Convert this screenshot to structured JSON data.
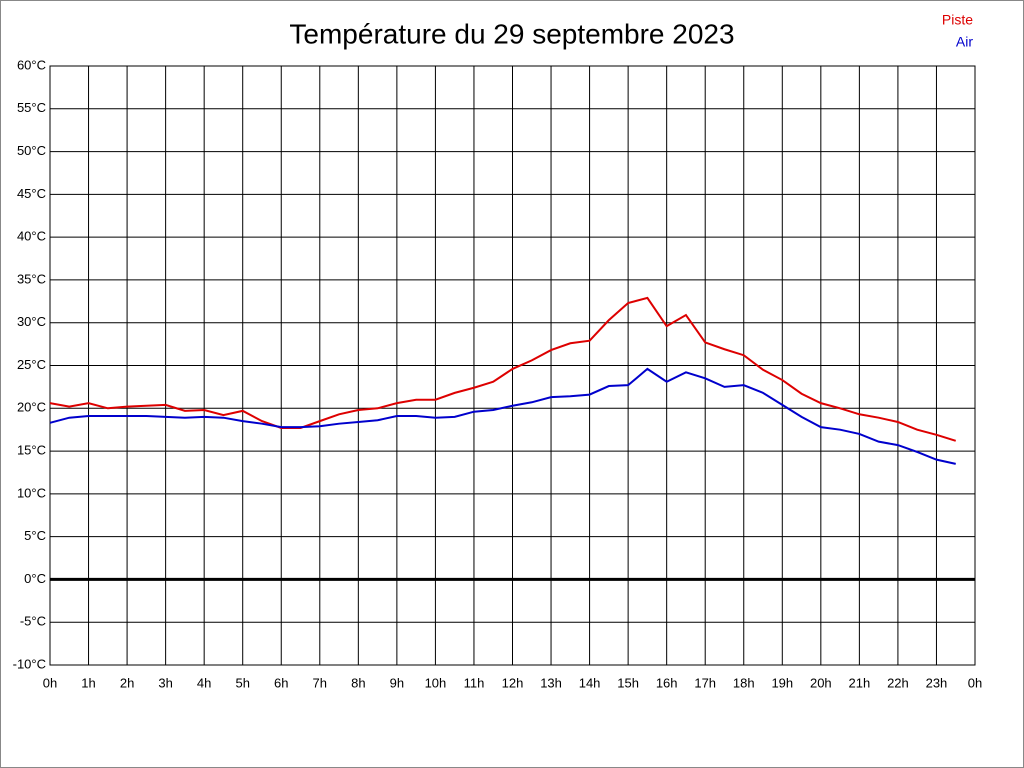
{
  "chart_data": {
    "type": "line",
    "title": "Température du 29 septembre 2023",
    "x": [
      0,
      0.5,
      1,
      1.5,
      2,
      2.5,
      3,
      3.5,
      4,
      4.5,
      5,
      5.5,
      6,
      6.5,
      7,
      7.5,
      8,
      8.5,
      9,
      9.5,
      10,
      10.5,
      11,
      11.5,
      12,
      12.5,
      13,
      13.5,
      14,
      14.5,
      15,
      15.5,
      16,
      16.5,
      17,
      17.5,
      18,
      18.5,
      19,
      19.5,
      20,
      20.5,
      21,
      21.5,
      22,
      22.5,
      23,
      23.5
    ],
    "series": [
      {
        "name": "Piste",
        "color": "#dd0000",
        "values": [
          20.6,
          20.2,
          20.6,
          20.0,
          20.2,
          20.3,
          20.4,
          19.7,
          19.8,
          19.2,
          19.7,
          18.5,
          17.7,
          17.7,
          18.5,
          19.3,
          19.8,
          20.0,
          20.6,
          21.0,
          21.0,
          21.8,
          22.4,
          23.1,
          24.6,
          25.6,
          26.8,
          27.6,
          27.9,
          30.3,
          32.3,
          32.9,
          29.6,
          30.9,
          27.7,
          26.9,
          26.2,
          24.5,
          23.3,
          21.7,
          20.6,
          20.0,
          19.3,
          18.9,
          18.4,
          17.5,
          16.9,
          16.2
        ]
      },
      {
        "name": "Air",
        "color": "#0000cc",
        "values": [
          18.3,
          18.9,
          19.1,
          19.1,
          19.1,
          19.1,
          19.0,
          18.9,
          19.0,
          18.9,
          18.5,
          18.2,
          17.8,
          17.8,
          17.9,
          18.2,
          18.4,
          18.6,
          19.1,
          19.1,
          18.9,
          19.0,
          19.6,
          19.8,
          20.3,
          20.7,
          21.3,
          21.4,
          21.6,
          22.6,
          22.7,
          24.6,
          23.1,
          24.2,
          23.5,
          22.5,
          22.7,
          21.8,
          20.4,
          19.0,
          17.8,
          17.5,
          17.0,
          16.1,
          15.7,
          14.9,
          14.0,
          13.5
        ]
      }
    ],
    "xlim": [
      0,
      24
    ],
    "xticks": [
      {
        "value": 0,
        "label": "0h"
      },
      {
        "value": 1,
        "label": "1h"
      },
      {
        "value": 2,
        "label": "2h"
      },
      {
        "value": 3,
        "label": "3h"
      },
      {
        "value": 4,
        "label": "4h"
      },
      {
        "value": 5,
        "label": "5h"
      },
      {
        "value": 6,
        "label": "6h"
      },
      {
        "value": 7,
        "label": "7h"
      },
      {
        "value": 8,
        "label": "8h"
      },
      {
        "value": 9,
        "label": "9h"
      },
      {
        "value": 10,
        "label": "10h"
      },
      {
        "value": 11,
        "label": "11h"
      },
      {
        "value": 12,
        "label": "12h"
      },
      {
        "value": 13,
        "label": "13h"
      },
      {
        "value": 14,
        "label": "14h"
      },
      {
        "value": 15,
        "label": "15h"
      },
      {
        "value": 16,
        "label": "16h"
      },
      {
        "value": 17,
        "label": "17h"
      },
      {
        "value": 18,
        "label": "18h"
      },
      {
        "value": 19,
        "label": "19h"
      },
      {
        "value": 20,
        "label": "20h"
      },
      {
        "value": 21,
        "label": "21h"
      },
      {
        "value": 22,
        "label": "22h"
      },
      {
        "value": 23,
        "label": "23h"
      },
      {
        "value": 24,
        "label": "0h"
      }
    ],
    "ylim": [
      -10,
      60
    ],
    "yticks": [
      {
        "value": -10,
        "label": "-10°C"
      },
      {
        "value": -5,
        "label": "-5°C"
      },
      {
        "value": 0,
        "label": "0°C"
      },
      {
        "value": 5,
        "label": "5°C"
      },
      {
        "value": 10,
        "label": "10°C"
      },
      {
        "value": 15,
        "label": "15°C"
      },
      {
        "value": 20,
        "label": "20°C"
      },
      {
        "value": 25,
        "label": "25°C"
      },
      {
        "value": 30,
        "label": "30°C"
      },
      {
        "value": 35,
        "label": "35°C"
      },
      {
        "value": 40,
        "label": "40°C"
      },
      {
        "value": 45,
        "label": "45°C"
      },
      {
        "value": 50,
        "label": "50°C"
      },
      {
        "value": 55,
        "label": "55°C"
      },
      {
        "value": 60,
        "label": "60°C"
      }
    ],
    "grid": true
  }
}
